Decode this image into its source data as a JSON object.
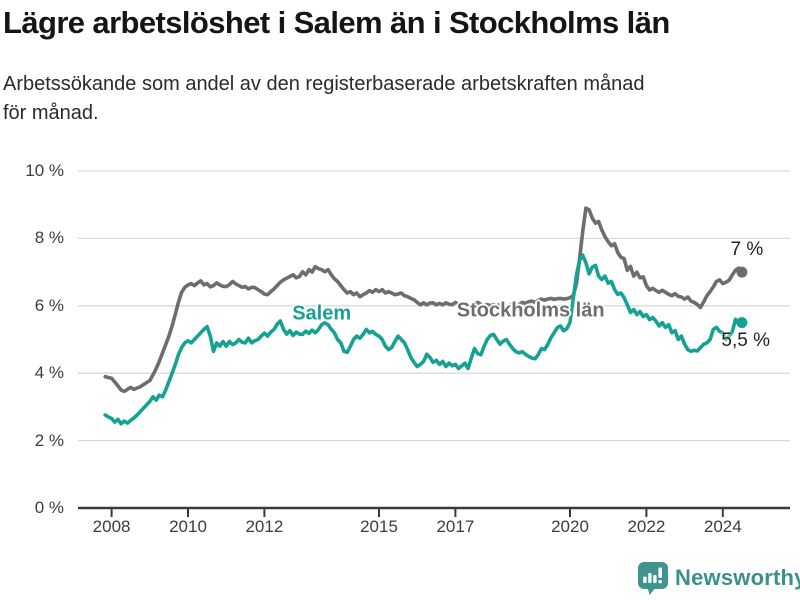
{
  "header": {
    "title": "Lägre arbetslöshet i Salem än i Stockholms län",
    "subtitle_line1": "Arbetssökande som andel av den registerbaserade arbetskraften månad",
    "subtitle_line2": "för månad."
  },
  "footer": {
    "brand": "Newsworthy"
  },
  "colors": {
    "salem": "#16a293",
    "stockholm": "#6d6d6d",
    "grid": "#d9d9d9",
    "axis": "#3a3a3a",
    "axis_text": "#3d3d3d",
    "title_text": "#151515",
    "end_label_text": "#222222",
    "brand_teal": "#3f948f",
    "brand_text": "#3a918c"
  },
  "chart_data": {
    "type": "line",
    "unit": "%",
    "frequency": "monthly",
    "start": {
      "year": 2007,
      "month": 11
    },
    "end": {
      "year": 2024,
      "month": 7
    },
    "ylim": [
      0,
      10
    ],
    "grid": "horizontal",
    "y_ticks": [
      {
        "value": 0,
        "label": "0 %"
      },
      {
        "value": 2,
        "label": "2 %"
      },
      {
        "value": 4,
        "label": "4 %"
      },
      {
        "value": 6,
        "label": "6 %"
      },
      {
        "value": 8,
        "label": "8 %"
      },
      {
        "value": 10,
        "label": "10 %"
      }
    ],
    "x_ticks": [
      {
        "value": 2008,
        "label": "2008"
      },
      {
        "value": 2010,
        "label": "2010"
      },
      {
        "value": 2012,
        "label": "2012"
      },
      {
        "value": 2015,
        "label": "2015"
      },
      {
        "value": 2017,
        "label": "2017"
      },
      {
        "value": 2020,
        "label": "2020"
      },
      {
        "value": 2022,
        "label": "2022"
      },
      {
        "value": 2024,
        "label": "2024"
      }
    ],
    "series": [
      {
        "name": "Stockholms län",
        "color": "#6d6d6d",
        "end_value": 7.0,
        "end_label": "7 %",
        "values": [
          3.9,
          3.87,
          3.85,
          3.74,
          3.62,
          3.5,
          3.46,
          3.52,
          3.58,
          3.52,
          3.56,
          3.6,
          3.66,
          3.72,
          3.78,
          3.95,
          4.14,
          4.35,
          4.6,
          4.85,
          5.1,
          5.4,
          5.75,
          6.1,
          6.4,
          6.55,
          6.62,
          6.66,
          6.6,
          6.68,
          6.74,
          6.62,
          6.66,
          6.56,
          6.6,
          6.68,
          6.62,
          6.58,
          6.57,
          6.63,
          6.72,
          6.65,
          6.6,
          6.55,
          6.57,
          6.5,
          6.55,
          6.54,
          6.48,
          6.42,
          6.35,
          6.33,
          6.42,
          6.5,
          6.6,
          6.7,
          6.77,
          6.82,
          6.87,
          6.92,
          6.83,
          6.87,
          7.01,
          6.92,
          7.07,
          7.0,
          7.16,
          7.1,
          7.07,
          7.01,
          7.07,
          6.92,
          6.8,
          6.72,
          6.6,
          6.48,
          6.38,
          6.42,
          6.33,
          6.38,
          6.27,
          6.33,
          6.38,
          6.45,
          6.4,
          6.48,
          6.42,
          6.48,
          6.38,
          6.42,
          6.38,
          6.33,
          6.35,
          6.38,
          6.3,
          6.27,
          6.22,
          6.18,
          6.1,
          6.03,
          6.09,
          6.03,
          6.08,
          6.09,
          6.03,
          6.07,
          6.03,
          6.09,
          6.05,
          6.03,
          6.1,
          6.04,
          6.0,
          6.06,
          6.02,
          5.98,
          6.04,
          6.1,
          6.04,
          6.0,
          6.04,
          6.0,
          6.04,
          6.0,
          6.04,
          6.0,
          5.97,
          6.02,
          6.06,
          5.97,
          6.04,
          6.1,
          6.07,
          6.12,
          6.14,
          6.1,
          6.16,
          6.2,
          6.17,
          6.2,
          6.22,
          6.19,
          6.21,
          6.22,
          6.2,
          6.21,
          6.24,
          6.3,
          6.65,
          7.4,
          8.2,
          8.9,
          8.85,
          8.6,
          8.45,
          8.5,
          8.25,
          8.05,
          7.9,
          7.78,
          7.84,
          7.58,
          7.44,
          7.4,
          7.05,
          7.17,
          6.88,
          7.0,
          6.83,
          6.86,
          6.6,
          6.47,
          6.52,
          6.45,
          6.4,
          6.46,
          6.4,
          6.34,
          6.3,
          6.36,
          6.28,
          6.26,
          6.2,
          6.26,
          6.14,
          6.1,
          6.04,
          5.95,
          6.12,
          6.3,
          6.42,
          6.56,
          6.72,
          6.77,
          6.66,
          6.7,
          6.76,
          6.92,
          7.06,
          7.12,
          7.0
        ]
      },
      {
        "name": "Salem",
        "color": "#16a293",
        "end_value": 5.5,
        "end_label": "5,5 %",
        "values": [
          2.76,
          2.7,
          2.66,
          2.55,
          2.63,
          2.5,
          2.58,
          2.52,
          2.6,
          2.67,
          2.76,
          2.86,
          2.96,
          3.06,
          3.16,
          3.3,
          3.2,
          3.35,
          3.3,
          3.5,
          3.75,
          4.0,
          4.26,
          4.55,
          4.76,
          4.9,
          4.96,
          4.9,
          5.0,
          5.1,
          5.2,
          5.3,
          5.38,
          5.1,
          4.65,
          4.9,
          4.8,
          4.94,
          4.8,
          4.94,
          4.85,
          4.9,
          5.0,
          4.92,
          4.9,
          5.04,
          4.9,
          4.96,
          5.0,
          5.1,
          5.19,
          5.1,
          5.22,
          5.3,
          5.45,
          5.55,
          5.3,
          5.16,
          5.26,
          5.12,
          5.22,
          5.16,
          5.15,
          5.25,
          5.18,
          5.28,
          5.2,
          5.3,
          5.44,
          5.5,
          5.44,
          5.3,
          5.2,
          5.0,
          4.9,
          4.65,
          4.62,
          4.8,
          5.0,
          5.1,
          5.04,
          5.15,
          5.3,
          5.2,
          5.24,
          5.15,
          5.1,
          5.0,
          4.8,
          4.7,
          4.76,
          4.94,
          5.1,
          5.0,
          4.9,
          4.7,
          4.47,
          4.32,
          4.2,
          4.26,
          4.35,
          4.56,
          4.47,
          4.32,
          4.38,
          4.26,
          4.35,
          4.2,
          4.3,
          4.22,
          4.26,
          4.14,
          4.22,
          4.3,
          4.14,
          4.45,
          4.73,
          4.58,
          4.55,
          4.8,
          5.0,
          5.12,
          5.15,
          5.0,
          4.86,
          4.95,
          5.0,
          4.86,
          4.73,
          4.64,
          4.6,
          4.64,
          4.56,
          4.5,
          4.45,
          4.43,
          4.55,
          4.73,
          4.7,
          4.85,
          5.05,
          5.2,
          5.35,
          5.4,
          5.26,
          5.32,
          5.5,
          6.2,
          6.9,
          7.35,
          7.5,
          7.28,
          6.95,
          7.15,
          7.2,
          6.88,
          6.78,
          6.88,
          6.67,
          6.72,
          6.48,
          6.34,
          6.38,
          6.24,
          6.03,
          5.8,
          5.89,
          5.74,
          5.83,
          5.68,
          5.74,
          5.59,
          5.65,
          5.54,
          5.4,
          5.5,
          5.36,
          5.44,
          5.2,
          5.26,
          5.0,
          5.1,
          4.86,
          4.7,
          4.65,
          4.68,
          4.66,
          4.76,
          4.86,
          4.9,
          5.0,
          5.3,
          5.36,
          5.24,
          5.2,
          5.0,
          5.1,
          5.24,
          5.6,
          5.45,
          5.5
        ]
      }
    ],
    "annotations": {
      "stockholm": {
        "text": "Stockholms län",
        "year": 2018.97,
        "value": 5.86,
        "color": "#6d6d6d"
      },
      "salem": {
        "text": "Salem",
        "year": 2013.5,
        "value": 5.76,
        "color": "#16a293"
      },
      "stockholm_end": {
        "text": "7 %",
        "year": 2024.63,
        "value": 7.66
      },
      "salem_end": {
        "text": "5,5 %",
        "year": 2024.6,
        "value": 4.95
      }
    }
  }
}
